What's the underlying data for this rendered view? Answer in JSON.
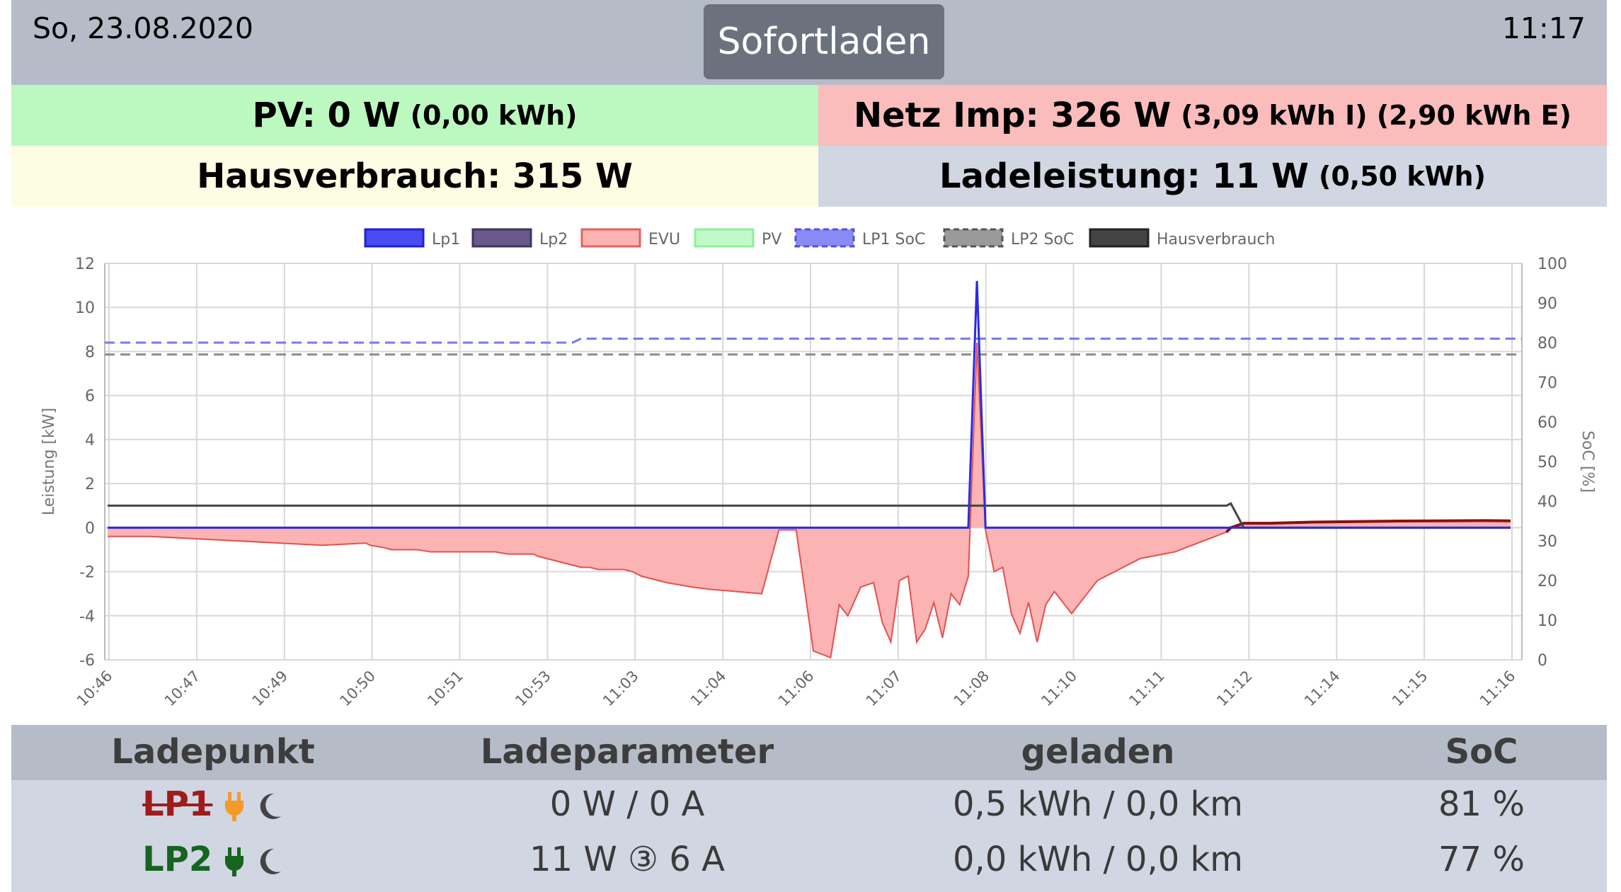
{
  "header": {
    "date": "So, 23.08.2020",
    "time": "11:17",
    "mode_button": "Sofortladen"
  },
  "summary": {
    "pv_label": "PV: 0 W",
    "pv_energy": "(0,00 kWh)",
    "netz_label": "Netz Imp: 326 W",
    "netz_energy": "(3,09 kWh I) (2,90 kWh E)",
    "haus_label": "Hausverbrauch: 315 W",
    "lade_label": "Ladeleistung: 11 W",
    "lade_energy": "(0,50 kWh)"
  },
  "colors": {
    "lp1": "#2a2ae6",
    "lp2": "#5e4f8c",
    "evu": "#f08080",
    "evu_fill": "#fbb3b3",
    "pv": "#9af5a8",
    "lp1soc": "#7878f0",
    "lp2soc": "#8c8c8c",
    "haus": "#444444"
  },
  "chart_data": {
    "type": "line",
    "legend": [
      "Lp1",
      "Lp2",
      "EVU",
      "PV",
      "LP1 SoC",
      "LP2 SoC",
      "Hausverbrauch"
    ],
    "ylabel": "Leistung [kW]",
    "y2label": "SoC [%]",
    "ylim": [
      -6,
      12
    ],
    "y2lim": [
      0,
      100
    ],
    "yticks": [
      "12",
      "10",
      "8",
      "6",
      "4",
      "2",
      "0",
      "-2",
      "-4",
      "-6"
    ],
    "y2ticks": [
      "100",
      "90",
      "80",
      "70",
      "60",
      "50",
      "40",
      "30",
      "20",
      "10",
      "0"
    ],
    "xticks": [
      "10:46",
      "10:47",
      "10:49",
      "10:50",
      "10:51",
      "10:53",
      "11:03",
      "11:04",
      "11:06",
      "11:07",
      "11:08",
      "11:10",
      "11:11",
      "11:12",
      "11:14",
      "11:15",
      "11:16"
    ],
    "x": [
      0,
      0.5,
      1,
      1.5,
      2,
      2.5,
      3,
      3.05,
      3.2,
      3.3,
      3.45,
      3.6,
      3.75,
      3.9,
      4.0,
      4.15,
      4.3,
      4.4,
      4.5,
      4.65,
      4.8,
      4.95,
      5.0,
      5.1,
      5.2,
      5.3,
      5.4,
      5.5,
      5.6,
      5.7,
      5.75,
      5.85,
      6.0,
      6.1,
      6.2,
      6.3,
      6.5,
      6.8,
      7.0,
      7.3,
      7.6,
      7.8,
      8.0,
      8.2,
      8.4,
      8.5,
      8.6,
      8.75,
      8.9,
      9.0,
      9.1,
      9.2,
      9.3,
      9.4,
      9.5,
      9.6,
      9.7,
      9.8,
      9.9,
      10.0,
      10.1,
      10.2,
      10.3,
      10.4,
      10.5,
      10.6,
      10.7,
      10.8,
      10.9,
      11.0,
      11.2,
      11.5,
      12,
      12.4,
      12.6,
      12.8,
      13.0,
      13.05,
      13.2,
      13.5,
      14,
      15,
      16,
      16.3
    ],
    "series": [
      {
        "name": "EVU",
        "values": [
          -0.4,
          -0.4,
          -0.5,
          -0.6,
          -0.7,
          -0.8,
          -0.7,
          -0.8,
          -0.9,
          -1.0,
          -1.0,
          -1.0,
          -1.1,
          -1.1,
          -1.1,
          -1.1,
          -1.1,
          -1.1,
          -1.1,
          -1.2,
          -1.2,
          -1.2,
          -1.3,
          -1.4,
          -1.5,
          -1.6,
          -1.7,
          -1.8,
          -1.8,
          -1.9,
          -1.9,
          -1.9,
          -1.9,
          -2.0,
          -2.2,
          -2.3,
          -2.5,
          -2.7,
          -2.8,
          -2.9,
          -3.0,
          -0.1,
          -0.1,
          -5.6,
          -5.9,
          -3.5,
          -4.0,
          -2.7,
          -2.5,
          -4.3,
          -5.2,
          -2.4,
          -2.2,
          -5.2,
          -4.6,
          -3.4,
          -5.0,
          -3.0,
          -3.5,
          -2.2,
          8.4,
          -0.1,
          -2.0,
          -1.8,
          -3.9,
          -4.8,
          -3.4,
          -5.2,
          -3.5,
          -2.9,
          -3.9,
          -2.4,
          -1.4,
          -1.1,
          -0.8,
          -0.5,
          -0.2,
          0.0,
          0.2,
          0.2,
          0.25,
          0.3,
          0.32,
          0.31
        ]
      },
      {
        "name": "Lp1",
        "values": [
          0,
          0,
          0,
          0,
          0,
          0,
          0,
          0,
          0,
          0,
          0,
          0,
          0,
          0,
          0,
          0,
          0,
          0,
          0,
          0,
          0,
          0,
          0,
          0,
          0,
          0,
          0,
          0,
          0,
          0,
          0,
          0,
          0,
          0,
          0,
          0,
          0,
          0,
          0,
          0,
          0,
          0,
          0,
          0,
          0,
          0,
          0,
          0,
          0,
          0,
          0,
          0,
          0,
          0,
          0,
          0,
          0,
          0,
          0,
          0,
          11.2,
          0,
          0,
          0,
          0,
          0,
          0,
          0,
          0,
          0,
          0,
          0,
          0,
          0,
          0,
          0,
          0,
          0,
          0,
          0,
          0,
          0,
          0,
          0
        ]
      },
      {
        "name": "Hausverbrauch",
        "values": [
          1.0,
          1.0,
          1.0,
          1.0,
          1.0,
          1.0,
          1.0,
          1.0,
          1.0,
          1.0,
          1.0,
          1.0,
          1.0,
          1.0,
          1.0,
          1.0,
          1.0,
          1.0,
          1.0,
          1.0,
          1.0,
          1.0,
          1.0,
          1.0,
          1.0,
          1.0,
          1.0,
          1.0,
          1.0,
          1.0,
          1.0,
          1.0,
          1.0,
          1.0,
          1.0,
          1.0,
          1.0,
          1.0,
          1.0,
          1.0,
          1.0,
          1.0,
          1.0,
          1.0,
          1.0,
          1.0,
          1.0,
          1.0,
          1.0,
          1.0,
          1.0,
          1.0,
          1.0,
          1.0,
          1.0,
          1.0,
          1.0,
          1.0,
          1.0,
          1.0,
          1.0,
          1.0,
          1.0,
          1.0,
          1.0,
          1.0,
          1.0,
          1.0,
          1.0,
          1.0,
          1.0,
          1.0,
          1.0,
          1.0,
          1.0,
          1.0,
          1.0,
          1.1,
          0.0,
          0.0,
          0.0,
          0.0,
          0.0,
          0.0
        ]
      },
      {
        "name": "LP1 SoC",
        "values_pct": [
          80,
          81
        ]
      },
      {
        "name": "LP2 SoC",
        "values_pct": [
          77,
          77
        ]
      }
    ]
  },
  "table": {
    "headers": [
      "Ladepunkt",
      "Ladeparameter",
      "geladen",
      "SoC"
    ],
    "rows": [
      {
        "name": "LP1",
        "param": "0 W / 0 A",
        "geladen": "0,5 kWh / 0,0 km",
        "soc": "81 %"
      },
      {
        "name": "LP2",
        "param": "11 W ③ 6 A",
        "geladen": "0,0 kWh / 0,0 km",
        "soc": "77 %"
      }
    ]
  }
}
